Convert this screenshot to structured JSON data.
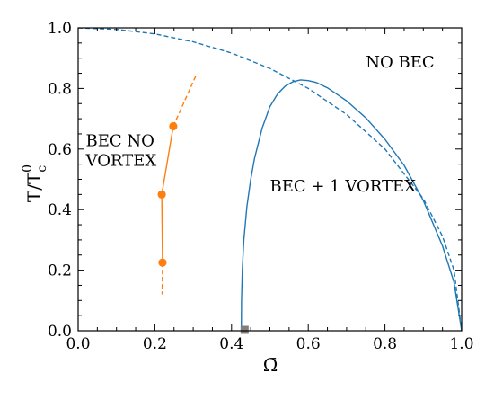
{
  "chart_data": {
    "type": "line",
    "xlabel": "Ω̄",
    "ylabel_main": "T/T",
    "ylabel_sub": "c",
    "ylabel_sup": "0",
    "xlim": [
      0.0,
      1.0
    ],
    "ylim": [
      0.0,
      1.0
    ],
    "xticks": [
      {
        "value": 0.0,
        "label": "0.0"
      },
      {
        "value": 0.2,
        "label": "0.2"
      },
      {
        "value": 0.4,
        "label": "0.4"
      },
      {
        "value": 0.6,
        "label": "0.6"
      },
      {
        "value": 0.8,
        "label": "0.8"
      },
      {
        "value": 1.0,
        "label": "1.0"
      }
    ],
    "yticks": [
      {
        "value": 0.0,
        "label": "0.0"
      },
      {
        "value": 0.2,
        "label": "0.2"
      },
      {
        "value": 0.4,
        "label": "0.4"
      },
      {
        "value": 0.6,
        "label": "0.6"
      },
      {
        "value": 0.8,
        "label": "0.8"
      },
      {
        "value": 1.0,
        "label": "1.0"
      }
    ],
    "grid": false,
    "colors": {
      "blue": "#1f77b4",
      "orange": "#ff7f0e",
      "gray": "#7f7f7f"
    },
    "series": [
      {
        "role": "bec-transition-dashed",
        "color": "#1f77b4",
        "style": "dashed",
        "x": [
          0.0,
          0.1,
          0.2,
          0.3,
          0.4,
          0.5,
          0.6,
          0.7,
          0.8,
          0.9,
          0.95,
          0.98,
          1.0
        ],
        "y": [
          1.0,
          0.995,
          0.98,
          0.954,
          0.917,
          0.866,
          0.8,
          0.714,
          0.6,
          0.436,
          0.312,
          0.2,
          0.0
        ]
      },
      {
        "role": "vortex-boundary",
        "color": "#1f77b4",
        "style": "solid",
        "x": [
          0.4255,
          0.426,
          0.428,
          0.432,
          0.44,
          0.45,
          0.46,
          0.48,
          0.5,
          0.52,
          0.54,
          0.56,
          0.58,
          0.6,
          0.62,
          0.65,
          0.7,
          0.75,
          0.8,
          0.85,
          0.9,
          0.95,
          0.98,
          1.0
        ],
        "y": [
          0.0,
          0.1,
          0.2,
          0.3,
          0.41,
          0.5,
          0.57,
          0.67,
          0.74,
          0.782,
          0.808,
          0.822,
          0.828,
          0.826,
          0.82,
          0.802,
          0.759,
          0.703,
          0.632,
          0.546,
          0.43,
          0.28,
          0.16,
          0.0
        ]
      },
      {
        "role": "no-vortex-line",
        "color": "#ff7f0e",
        "style": "solid",
        "x": [
          0.22,
          0.218,
          0.248
        ],
        "y": [
          0.225,
          0.45,
          0.675
        ]
      },
      {
        "role": "no-vortex-ext-low",
        "color": "#ff7f0e",
        "style": "dashed",
        "x": [
          0.22,
          0.219
        ],
        "y": [
          0.225,
          0.12
        ]
      },
      {
        "role": "no-vortex-ext-high",
        "color": "#ff7f0e",
        "style": "dashed",
        "x": [
          0.248,
          0.308
        ],
        "y": [
          0.675,
          0.845
        ]
      }
    ],
    "points": [
      {
        "x": 0.22,
        "y": 0.225,
        "color": "#ff7f0e"
      },
      {
        "x": 0.218,
        "y": 0.45,
        "color": "#ff7f0e"
      },
      {
        "x": 0.248,
        "y": 0.675,
        "color": "#ff7f0e"
      }
    ],
    "square_marker": {
      "x": 0.434,
      "y": 0.0,
      "color": "#7f7f7f"
    },
    "annotations": [
      {
        "key": "no_bec",
        "lines": [
          "NO BEC"
        ],
        "x": 0.75,
        "y": 0.87
      },
      {
        "key": "bec_no_vortex",
        "lines": [
          "BEC NO",
          "VORTEX"
        ],
        "x": 0.02,
        "y": 0.61
      },
      {
        "key": "bec_one_vortex",
        "lines": [
          "BEC + 1 VORTEX"
        ],
        "x": 0.5,
        "y": 0.46
      }
    ]
  }
}
